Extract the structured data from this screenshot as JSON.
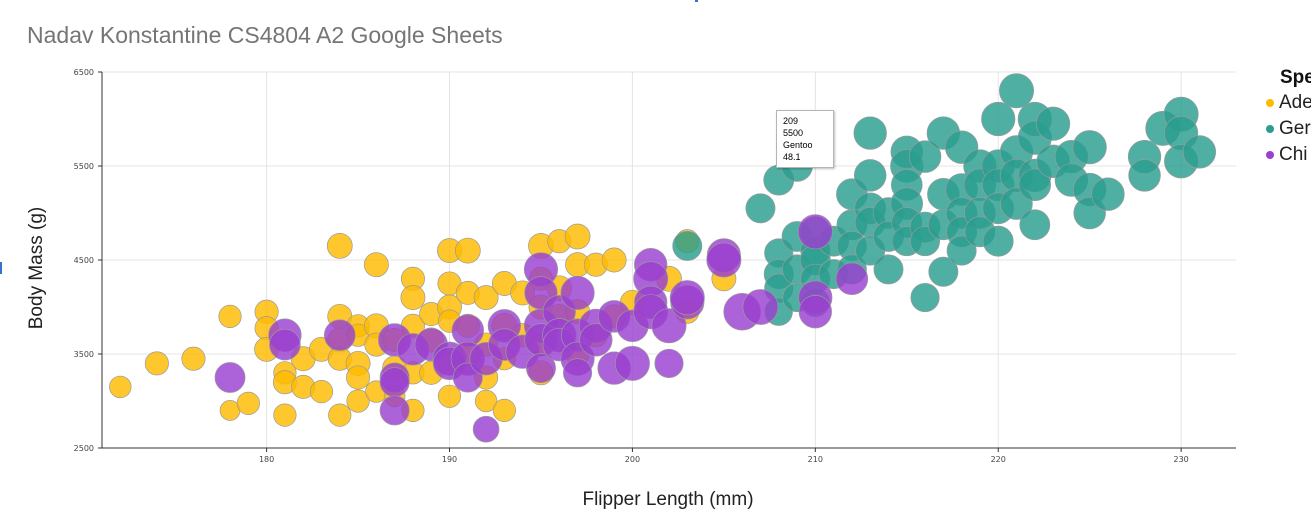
{
  "chart_data": {
    "type": "scatter",
    "title": "Nadav Konstantine CS4804 A2 Google Sheets",
    "xlabel": "Flipper Length (mm)",
    "ylabel": "Body Mass (g)",
    "xlim": [
      171,
      233
    ],
    "ylim": [
      2500,
      6500
    ],
    "x_ticks": [
      180,
      190,
      200,
      210,
      220,
      230
    ],
    "y_ticks": [
      2500,
      3500,
      4500,
      5500,
      6500
    ],
    "grid": true,
    "legend_position": "right",
    "legend_title": "Species",
    "legend_title_visible": "Spe",
    "series": [
      {
        "name": "Adelie",
        "visible_label": "Ade",
        "color": "#ffbb00",
        "points": [
          [
            172,
            3150,
            37
          ],
          [
            174,
            3400,
            39
          ],
          [
            176,
            3450,
            39
          ],
          [
            178,
            3900,
            38
          ],
          [
            178,
            2900,
            35
          ],
          [
            179,
            2975,
            38
          ],
          [
            180,
            3950,
            39
          ],
          [
            180,
            3775,
            39
          ],
          [
            180,
            3550,
            40
          ],
          [
            181,
            3300,
            38
          ],
          [
            181,
            3200,
            39
          ],
          [
            181,
            2850,
            38
          ],
          [
            182,
            3450,
            40
          ],
          [
            182,
            3150,
            39
          ],
          [
            183,
            3550,
            40
          ],
          [
            183,
            3100,
            38
          ],
          [
            184,
            4650,
            41
          ],
          [
            184,
            3900,
            40
          ],
          [
            184,
            3650,
            40
          ],
          [
            184,
            3450,
            39
          ],
          [
            184,
            2850,
            38
          ],
          [
            185,
            3800,
            38
          ],
          [
            185,
            3700,
            38
          ],
          [
            185,
            3400,
            40
          ],
          [
            185,
            3250,
            39
          ],
          [
            185,
            3000,
            38
          ],
          [
            186,
            4450,
            40
          ],
          [
            186,
            3800,
            40
          ],
          [
            186,
            3600,
            39
          ],
          [
            186,
            3100,
            37
          ],
          [
            187,
            3650,
            39
          ],
          [
            187,
            3350,
            40
          ],
          [
            187,
            3050,
            36
          ],
          [
            188,
            4300,
            39
          ],
          [
            188,
            4100,
            40
          ],
          [
            188,
            3800,
            39
          ],
          [
            188,
            3300,
            38
          ],
          [
            188,
            2900,
            38
          ],
          [
            189,
            3925,
            39
          ],
          [
            189,
            3650,
            40
          ],
          [
            189,
            3300,
            39
          ],
          [
            190,
            4600,
            40
          ],
          [
            190,
            4250,
            39
          ],
          [
            190,
            4000,
            40
          ],
          [
            190,
            3850,
            38
          ],
          [
            190,
            3400,
            37
          ],
          [
            190,
            3050,
            38
          ],
          [
            191,
            4600,
            41
          ],
          [
            191,
            4150,
            39
          ],
          [
            191,
            3800,
            39
          ],
          [
            191,
            3500,
            40
          ],
          [
            192,
            4100,
            40
          ],
          [
            192,
            3600,
            39
          ],
          [
            192,
            3250,
            39
          ],
          [
            192,
            3000,
            37
          ],
          [
            193,
            4250,
            40
          ],
          [
            193,
            3800,
            41
          ],
          [
            193,
            3450,
            38
          ],
          [
            193,
            2900,
            38
          ],
          [
            194,
            4150,
            40
          ],
          [
            194,
            3700,
            39
          ],
          [
            195,
            4650,
            41
          ],
          [
            195,
            4300,
            39
          ],
          [
            195,
            4000,
            40
          ],
          [
            195,
            3600,
            38
          ],
          [
            195,
            3300,
            40
          ],
          [
            196,
            4700,
            39
          ],
          [
            196,
            4200,
            41
          ],
          [
            196,
            3900,
            40
          ],
          [
            197,
            4750,
            41
          ],
          [
            197,
            4450,
            40
          ],
          [
            197,
            3950,
            40
          ],
          [
            197,
            3500,
            39
          ],
          [
            198,
            4450,
            39
          ],
          [
            198,
            3700,
            39
          ],
          [
            199,
            4500,
            40
          ],
          [
            199,
            3900,
            39
          ],
          [
            200,
            4050,
            40
          ],
          [
            202,
            4300,
            41
          ],
          [
            203,
            4700,
            39
          ],
          [
            203,
            3950,
            39
          ],
          [
            205,
            4300,
            40
          ]
        ]
      },
      {
        "name": "Gentoo",
        "visible_label": "Ger",
        "color": "#2a9d8f",
        "points": [
          [
            203,
            4650,
            46
          ],
          [
            207,
            5050,
            46
          ],
          [
            208,
            5350,
            47
          ],
          [
            208,
            4575,
            45
          ],
          [
            208,
            4350,
            46
          ],
          [
            208,
            4200,
            45
          ],
          [
            208,
            3950,
            44
          ],
          [
            209,
            5500,
            48
          ],
          [
            209,
            4750,
            47
          ],
          [
            209,
            4400,
            46
          ],
          [
            209,
            4100,
            45
          ],
          [
            210,
            4800,
            47
          ],
          [
            210,
            4600,
            46
          ],
          [
            210,
            4500,
            47
          ],
          [
            210,
            4300,
            46
          ],
          [
            210,
            4050,
            45
          ],
          [
            211,
            4700,
            47
          ],
          [
            211,
            4350,
            46
          ],
          [
            212,
            5200,
            48
          ],
          [
            212,
            4875,
            47
          ],
          [
            212,
            4650,
            46
          ],
          [
            212,
            4400,
            46
          ],
          [
            213,
            5850,
            50
          ],
          [
            213,
            5400,
            49
          ],
          [
            213,
            5050,
            48
          ],
          [
            213,
            4900,
            47
          ],
          [
            213,
            4600,
            46
          ],
          [
            214,
            5000,
            48
          ],
          [
            214,
            4750,
            47
          ],
          [
            214,
            4400,
            46
          ],
          [
            215,
            5650,
            49
          ],
          [
            215,
            5500,
            50
          ],
          [
            215,
            5300,
            48
          ],
          [
            215,
            5100,
            49
          ],
          [
            215,
            4900,
            47
          ],
          [
            215,
            4700,
            46
          ],
          [
            216,
            5600,
            49
          ],
          [
            216,
            4850,
            47
          ],
          [
            216,
            4700,
            46
          ],
          [
            216,
            4100,
            45
          ],
          [
            217,
            5850,
            50
          ],
          [
            217,
            5200,
            49
          ],
          [
            217,
            4875,
            47
          ],
          [
            217,
            4375,
            46
          ],
          [
            218,
            5700,
            50
          ],
          [
            218,
            5250,
            49
          ],
          [
            218,
            5000,
            48
          ],
          [
            218,
            4800,
            47
          ],
          [
            218,
            4600,
            46
          ],
          [
            219,
            5500,
            50
          ],
          [
            219,
            5300,
            49
          ],
          [
            219,
            5000,
            48
          ],
          [
            219,
            4800,
            47
          ],
          [
            220,
            6000,
            51
          ],
          [
            220,
            5500,
            50
          ],
          [
            220,
            5300,
            49
          ],
          [
            220,
            5050,
            48
          ],
          [
            220,
            4700,
            47
          ],
          [
            221,
            6300,
            52
          ],
          [
            221,
            5650,
            50
          ],
          [
            221,
            5400,
            50
          ],
          [
            221,
            5100,
            49
          ],
          [
            222,
            6000,
            51
          ],
          [
            222,
            5800,
            51
          ],
          [
            222,
            5400,
            50
          ],
          [
            222,
            5300,
            49
          ],
          [
            222,
            4875,
            47
          ],
          [
            223,
            5950,
            51
          ],
          [
            223,
            5550,
            50
          ],
          [
            224,
            5600,
            50
          ],
          [
            224,
            5350,
            50
          ],
          [
            225,
            5700,
            51
          ],
          [
            225,
            5250,
            50
          ],
          [
            225,
            5000,
            49
          ],
          [
            226,
            5200,
            50
          ],
          [
            228,
            5600,
            50
          ],
          [
            228,
            5400,
            49
          ],
          [
            229,
            5900,
            52
          ],
          [
            230,
            6050,
            52
          ],
          [
            230,
            5850,
            51
          ],
          [
            230,
            5550,
            51
          ],
          [
            231,
            5650,
            50
          ]
        ]
      },
      {
        "name": "Chinstrap",
        "visible_label": "Chi",
        "color": "#9a3fd0",
        "points": [
          [
            178,
            3250,
            47
          ],
          [
            181,
            3700,
            50
          ],
          [
            181,
            3600,
            48
          ],
          [
            184,
            3700,
            48
          ],
          [
            187,
            3650,
            50
          ],
          [
            187,
            3250,
            46
          ],
          [
            187,
            3200,
            46
          ],
          [
            187,
            2900,
            46
          ],
          [
            188,
            3550,
            49
          ],
          [
            189,
            3600,
            50
          ],
          [
            190,
            3450,
            51
          ],
          [
            190,
            3400,
            50
          ],
          [
            191,
            3750,
            49
          ],
          [
            191,
            3450,
            51
          ],
          [
            191,
            3250,
            46
          ],
          [
            192,
            3450,
            50
          ],
          [
            192,
            2700,
            42
          ],
          [
            193,
            3800,
            50
          ],
          [
            193,
            3600,
            49
          ],
          [
            194,
            3525,
            51
          ],
          [
            195,
            4400,
            51
          ],
          [
            195,
            4150,
            50
          ],
          [
            195,
            3800,
            51
          ],
          [
            195,
            3650,
            50
          ],
          [
            195,
            3350,
            46
          ],
          [
            196,
            3950,
            50
          ],
          [
            196,
            3700,
            51
          ],
          [
            196,
            3600,
            50
          ],
          [
            197,
            4150,
            51
          ],
          [
            197,
            3700,
            50
          ],
          [
            197,
            3450,
            51
          ],
          [
            197,
            3300,
            45
          ],
          [
            198,
            3800,
            51
          ],
          [
            198,
            3650,
            50
          ],
          [
            199,
            3900,
            49
          ],
          [
            199,
            3350,
            50
          ],
          [
            200,
            3800,
            49
          ],
          [
            200,
            3400,
            52
          ],
          [
            201,
            4450,
            50
          ],
          [
            201,
            4300,
            52
          ],
          [
            201,
            4050,
            50
          ],
          [
            201,
            3950,
            52
          ],
          [
            202,
            3800,
            52
          ],
          [
            202,
            3400,
            45
          ],
          [
            203,
            4050,
            51
          ],
          [
            203,
            4100,
            52
          ],
          [
            205,
            4550,
            51
          ],
          [
            205,
            4500,
            52
          ],
          [
            206,
            3950,
            55
          ],
          [
            207,
            4000,
            53
          ],
          [
            210,
            4800,
            52
          ],
          [
            210,
            4100,
            51
          ],
          [
            210,
            3950,
            50
          ],
          [
            212,
            4300,
            49
          ]
        ]
      }
    ]
  },
  "tooltip": {
    "lines": [
      "209",
      "5500",
      "Gentoo",
      "48.1"
    ]
  },
  "colors": {
    "grid": "#e4e4e4",
    "axis": "#333333",
    "marker_outline": "#9a9a9a"
  }
}
